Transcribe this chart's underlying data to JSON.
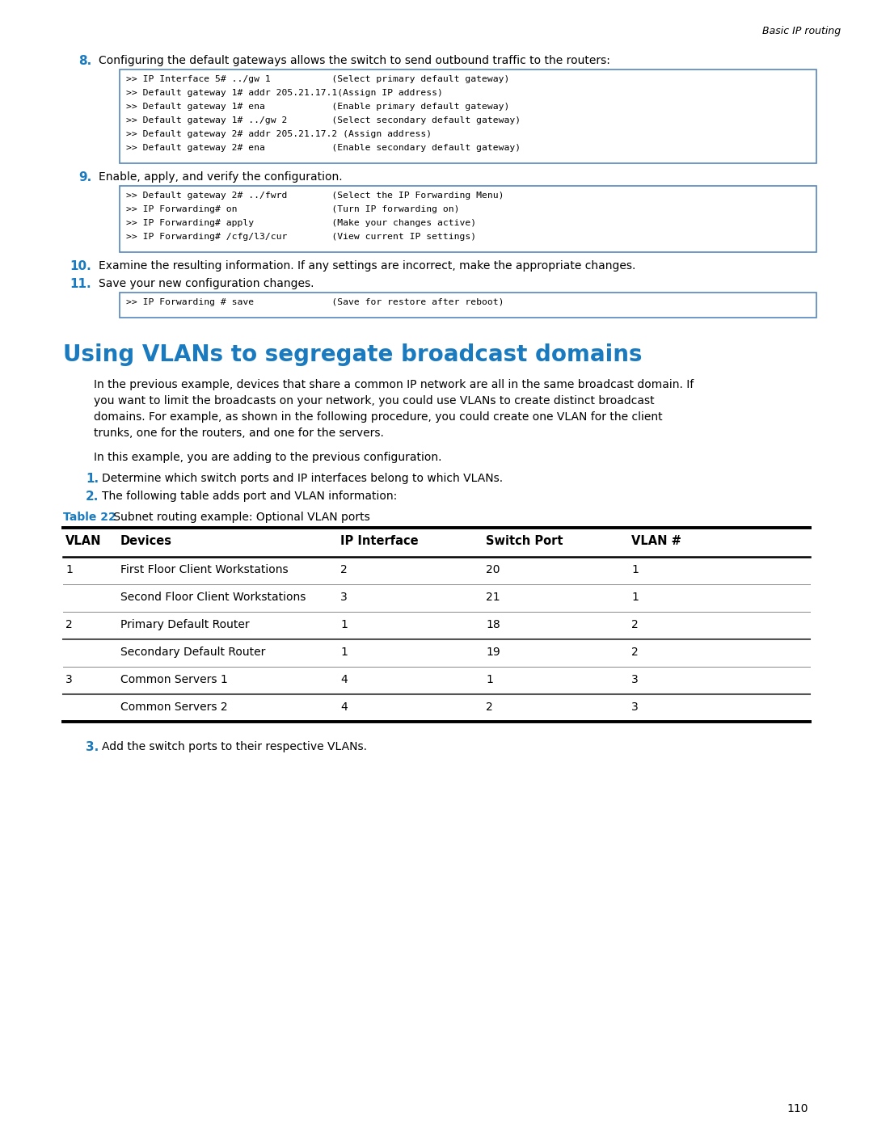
{
  "header_text": "Basic IP routing",
  "page_number": "110",
  "bg_color": "#ffffff",
  "blue_color": "#1a7abf",
  "step8_number": "8.",
  "step8_text": "Configuring the default gateways allows the switch to send outbound traffic to the routers:",
  "step8_code": [
    ">> IP Interface 5# ../gw 1           (Select primary default gateway)",
    ">> Default gateway 1# addr 205.21.17.1(Assign IP address)",
    ">> Default gateway 1# ena            (Enable primary default gateway)",
    ">> Default gateway 1# ../gw 2        (Select secondary default gateway)",
    ">> Default gateway 2# addr 205.21.17.2 (Assign address)",
    ">> Default gateway 2# ena            (Enable secondary default gateway)"
  ],
  "step9_number": "9.",
  "step9_text": "Enable, apply, and verify the configuration.",
  "step9_code": [
    ">> Default gateway 2# ../fwrd        (Select the IP Forwarding Menu)",
    ">> IP Forwarding# on                 (Turn IP forwarding on)",
    ">> IP Forwarding# apply              (Make your changes active)",
    ">> IP Forwarding# /cfg/l3/cur        (View current IP settings)"
  ],
  "step10_number": "10.",
  "step10_text": "Examine the resulting information. If any settings are incorrect, make the appropriate changes.",
  "step11_number": "11.",
  "step11_text": "Save your new configuration changes.",
  "step11_code": [
    ">> IP Forwarding # save              (Save for restore after reboot)"
  ],
  "section_title": "Using VLANs to segregate broadcast domains",
  "para1_lines": [
    "In the previous example, devices that share a common IP network are all in the same broadcast domain. If",
    "you want to limit the broadcasts on your network, you could use VLANs to create distinct broadcast",
    "domains. For example, as shown in the following procedure, you could create one VLAN for the client",
    "trunks, one for the routers, and one for the servers."
  ],
  "para2": "In this example, you are adding to the previous configuration.",
  "vlan_step1_number": "1.",
  "vlan_step1_text": "Determine which switch ports and IP interfaces belong to which VLANs.",
  "vlan_step2_number": "2.",
  "vlan_step2_text": "The following table adds port and VLAN information:",
  "table_caption_bold": "Table 22",
  "table_caption_text": " Subnet routing example: Optional VLAN ports",
  "table_headers": [
    "VLAN",
    "Devices",
    "IP Interface",
    "Switch Port",
    "VLAN #"
  ],
  "table_rows": [
    [
      "1",
      "First Floor Client Workstations",
      "2",
      "20",
      "1"
    ],
    [
      "",
      "Second Floor Client Workstations",
      "3",
      "21",
      "1"
    ],
    [
      "2",
      "Primary Default Router",
      "1",
      "18",
      "2"
    ],
    [
      "",
      "Secondary Default Router",
      "1",
      "19",
      "2"
    ],
    [
      "3",
      "Common Servers 1",
      "4",
      "1",
      "3"
    ],
    [
      "",
      "Common Servers 2",
      "4",
      "2",
      "3"
    ]
  ],
  "vlan_step3_number": "3.",
  "vlan_step3_text": "Add the switch ports to their respective VLANs."
}
